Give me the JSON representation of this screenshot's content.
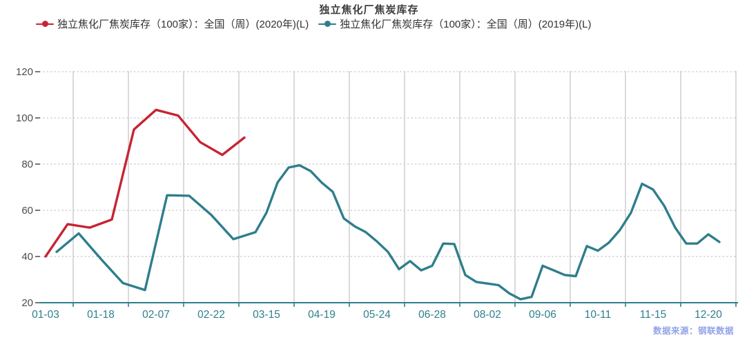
{
  "title": "独立焦化厂焦炭库存",
  "source_note": "数据来源：钢联数据",
  "colors": {
    "series_2020": "#c62434",
    "series_2019": "#2e7e8c",
    "x_label": "#2e7f8e",
    "x_axis": "#2e7f8e",
    "y_label": "#4c4c4c",
    "y_tick": "#555555",
    "grid": "#cbcbcb",
    "title": "#3d3d3d",
    "legend_text": "#333333",
    "source": "#93a4e8"
  },
  "chart_data": {
    "type": "line",
    "title": "独立焦化厂焦炭库存",
    "grid": "on",
    "legend_position": "top",
    "y_axis": {
      "min": 20,
      "max": 120,
      "ticks": [
        20,
        40,
        60,
        80,
        100,
        120
      ]
    },
    "x_ticks": [
      {
        "label": "01-03",
        "index": 0
      },
      {
        "label": "01-18",
        "index": 5
      },
      {
        "label": "02-07",
        "index": 10
      },
      {
        "label": "02-22",
        "index": 15
      },
      {
        "label": "03-15",
        "index": 20
      },
      {
        "label": "04-19",
        "index": 25
      },
      {
        "label": "05-24",
        "index": 30
      },
      {
        "label": "06-28",
        "index": 35
      },
      {
        "label": "08-02",
        "index": 40
      },
      {
        "label": "09-06",
        "index": 45
      },
      {
        "label": "10-11",
        "index": 50
      },
      {
        "label": "11-15",
        "index": 55
      },
      {
        "label": "12-20",
        "index": 60
      }
    ],
    "series": [
      {
        "name": "独立焦化厂焦炭库存（100家）：全国（周）(2020年)(L)",
        "color": "#c62434",
        "points": [
          [
            0,
            40
          ],
          [
            2,
            54
          ],
          [
            4,
            52.5
          ],
          [
            6,
            56
          ],
          [
            8,
            95
          ],
          [
            10,
            103.5
          ],
          [
            12,
            101
          ],
          [
            14,
            89.5
          ],
          [
            16,
            84
          ],
          [
            18,
            91.5
          ]
        ]
      },
      {
        "name": "独立焦化厂焦炭库存（100家）：全国（周）(2019年)(L)",
        "color": "#2e7e8c",
        "points": [
          [
            1,
            42
          ],
          [
            3,
            50
          ],
          [
            5,
            39
          ],
          [
            7,
            28.5
          ],
          [
            9,
            25.5
          ],
          [
            11,
            66.5
          ],
          [
            13,
            66.3
          ],
          [
            15,
            58
          ],
          [
            17,
            47.5
          ],
          [
            19,
            50.5
          ],
          [
            20,
            59
          ],
          [
            21,
            72
          ],
          [
            22,
            78.5
          ],
          [
            23,
            79.5
          ],
          [
            24,
            77
          ],
          [
            25,
            72
          ],
          [
            26,
            68
          ],
          [
            27,
            56.5
          ],
          [
            28,
            53
          ],
          [
            29,
            50.5
          ],
          [
            30,
            46.5
          ],
          [
            31,
            42
          ],
          [
            32,
            34.5
          ],
          [
            33,
            38
          ],
          [
            34,
            34
          ],
          [
            35,
            36
          ],
          [
            36,
            45.6
          ],
          [
            37,
            45.4
          ],
          [
            38,
            32
          ],
          [
            39,
            29
          ],
          [
            40,
            28.3
          ],
          [
            41,
            27.6
          ],
          [
            42,
            24
          ],
          [
            43,
            21.5
          ],
          [
            44,
            22.5
          ],
          [
            45,
            36
          ],
          [
            46,
            34
          ],
          [
            47,
            32
          ],
          [
            48,
            31.5
          ],
          [
            49,
            44.5
          ],
          [
            50,
            42.5
          ],
          [
            51,
            46
          ],
          [
            52,
            51.5
          ],
          [
            53,
            59
          ],
          [
            54,
            71.5
          ],
          [
            55,
            69
          ],
          [
            56,
            62
          ],
          [
            57,
            52.5
          ],
          [
            58,
            45.6
          ],
          [
            59,
            45.6
          ],
          [
            60,
            49.6
          ],
          [
            61,
            46.3
          ]
        ]
      }
    ]
  }
}
